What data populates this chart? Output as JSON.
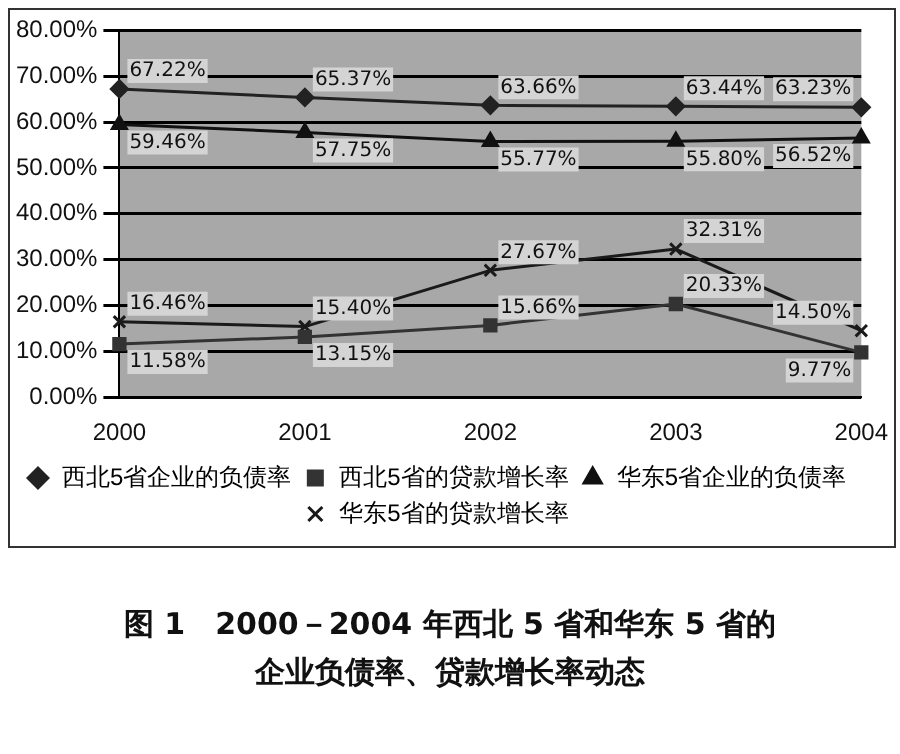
{
  "chart_data": {
    "type": "line",
    "categories": [
      "2000",
      "2001",
      "2002",
      "2003",
      "2004"
    ],
    "series": [
      {
        "name": "西北5省企业的负债率",
        "color": "#222222",
        "marker": "diamond",
        "values": [
          67.22,
          65.37,
          63.66,
          63.44,
          63.23
        ],
        "value_labels": [
          "67.22%",
          "65.37%",
          "63.66%",
          "63.44%",
          "63.23%"
        ]
      },
      {
        "name": "西北5省的贷款增长率",
        "color": "#333333",
        "marker": "square",
        "values": [
          11.58,
          13.15,
          15.66,
          20.33,
          9.77
        ],
        "value_labels": [
          "11.58%",
          "13.15%",
          "15.66%",
          "20.33%",
          "9.77%"
        ]
      },
      {
        "name": "华东5省企业的负债率",
        "color": "#111111",
        "marker": "triangle",
        "values": [
          59.46,
          57.75,
          55.77,
          55.8,
          56.52
        ],
        "value_labels": [
          "59.46%",
          "57.75%",
          "55.77%",
          "55.80%",
          "56.52%"
        ]
      },
      {
        "name": "华东5省的贷款增长率",
        "color": "#1a1a1a",
        "marker": "cross",
        "values": [
          16.46,
          15.4,
          27.67,
          32.31,
          14.5
        ],
        "value_labels": [
          "16.46%",
          "15.40%",
          "27.67%",
          "32.31%",
          "14.50%"
        ]
      }
    ],
    "ylim": [
      0,
      80
    ],
    "yticks": [
      {
        "value": 0,
        "label": "0.00%"
      },
      {
        "value": 10,
        "label": "10.00%"
      },
      {
        "value": 20,
        "label": "20.00%"
      },
      {
        "value": 30,
        "label": "30.00%"
      },
      {
        "value": 40,
        "label": "40.00%"
      },
      {
        "value": 50,
        "label": "50.00%"
      },
      {
        "value": 60,
        "label": "60.00%"
      },
      {
        "value": 70,
        "label": "70.00%"
      },
      {
        "value": 80,
        "label": "80.00%"
      }
    ],
    "grid": "y",
    "legend": "bottom",
    "line_style": "solid",
    "annotations": [
      "图 1　2000－2004 年西北 5 省和华东 5 省的企业负债率、贷款增长率动态"
    ]
  }
}
